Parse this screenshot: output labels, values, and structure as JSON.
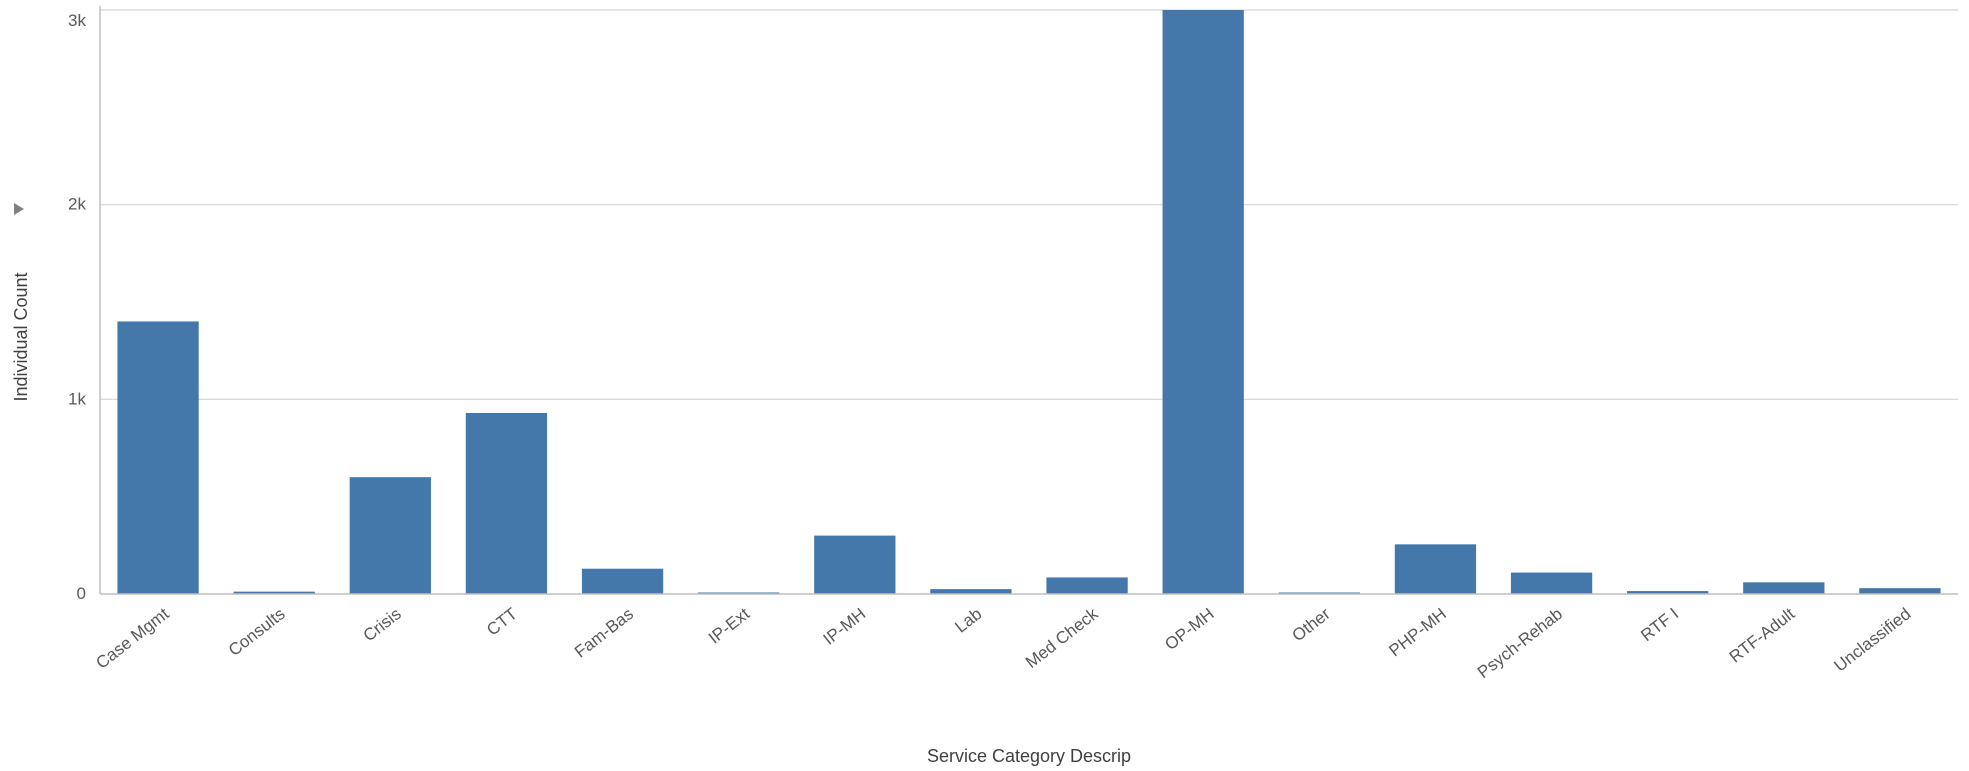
{
  "chart_data": {
    "type": "bar",
    "xlabel": "Service Category Descrip",
    "ylabel": "Individual Count",
    "ylim": [
      0,
      3000
    ],
    "y_ticks": [
      0,
      1000,
      2000,
      3000
    ],
    "y_tick_labels": [
      "0",
      "1k",
      "2k",
      "3k"
    ],
    "grid": true,
    "bar_color": "#4477aa",
    "categories": [
      "Case Mgmt",
      "Consults",
      "Crisis",
      "CTT",
      "Fam-Bas",
      "IP-Ext",
      "IP-MH",
      "Lab",
      "Med Check",
      "OP-MH",
      "Other",
      "PHP-MH",
      "Psych-Rehab",
      "RTF I",
      "RTF-Adult",
      "Unclassified"
    ],
    "values": [
      1400,
      12,
      600,
      930,
      130,
      6,
      300,
      25,
      85,
      3000,
      5,
      255,
      110,
      15,
      60,
      30
    ]
  }
}
